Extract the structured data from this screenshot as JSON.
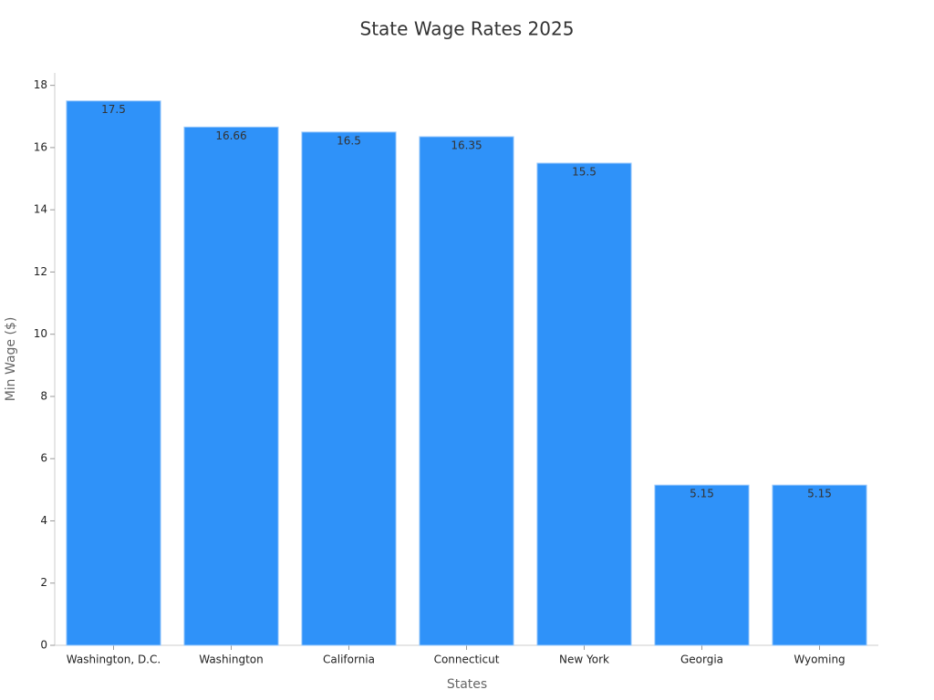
{
  "chart_data": {
    "type": "bar",
    "title": "State Wage Rates 2025",
    "x_label": "States",
    "y_label": "Min Wage ($)",
    "categories": [
      "Washington, D.C.",
      "Washington",
      "California",
      "Connecticut",
      "New York",
      "Georgia",
      "Wyoming"
    ],
    "values": [
      17.5,
      16.66,
      16.5,
      16.35,
      15.5,
      5.15,
      5.15
    ],
    "color": "#2f92f9",
    "ylim": [
      0,
      18.4
    ],
    "yticks": [
      0,
      2,
      4,
      6,
      8,
      10,
      12,
      14,
      16,
      18
    ],
    "grid": false
  }
}
